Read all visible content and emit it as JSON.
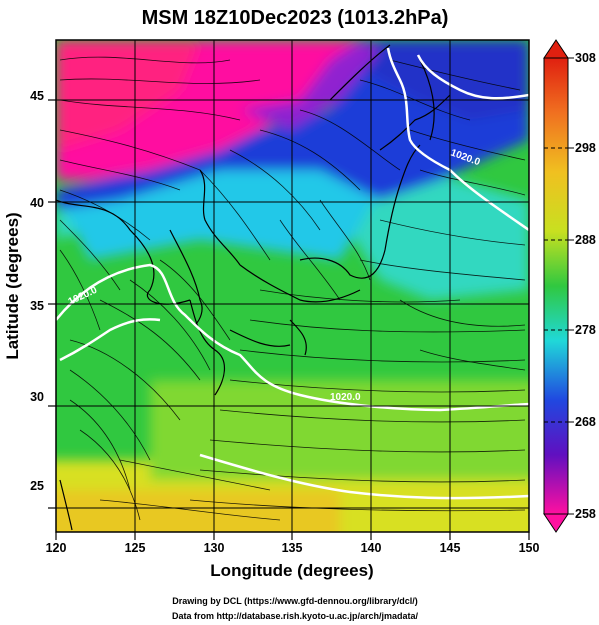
{
  "title": "MSM 18Z10Dec2023 (1013.2hPa)",
  "xlabel": "Longitude (degrees)",
  "ylabel": "Latitude  (degrees)",
  "x_ticks": [
    "120",
    "125",
    "130",
    "135",
    "140",
    "145",
    "150"
  ],
  "y_ticks": [
    "25",
    "30",
    "35",
    "40",
    "45"
  ],
  "colorbar_ticks": [
    "308",
    "298",
    "288",
    "278",
    "268",
    "258"
  ],
  "contour_labels": [
    "1020.0",
    "1020.0",
    "1020.0"
  ],
  "credits": {
    "line1": "Drawing by DCL (https://www.gfd-dennou.org/library/dcl/)",
    "line2": "Data from http://database.rish.kyoto-u.ac.jp/arch/jmadata/"
  },
  "colors": {
    "magenta": "#ff1493",
    "purple": "#9010d0",
    "blue": "#1e3cd8",
    "cyan": "#20d8e0",
    "green": "#30c830",
    "yellow": "#d8e020",
    "orange": "#f0a020",
    "red": "#e03010",
    "contour": "#ffffff",
    "coast": "#000000"
  }
}
